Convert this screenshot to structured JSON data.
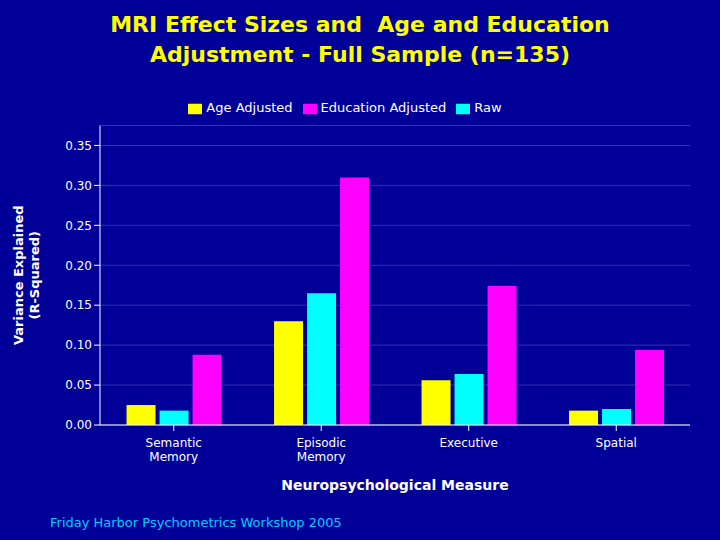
{
  "chart_data": {
    "type": "bar",
    "title": "MRI Effect Sizes and  Age and Education\nAdjustment - Full Sample (n=135)",
    "categories": [
      "Semantic\nMemory",
      "Episodic\nMemory",
      "Executive",
      "Spatial"
    ],
    "series": [
      {
        "name": "Age Adjusted",
        "color": "#FFFF00",
        "values": [
          0.025,
          0.13,
          0.056,
          0.018
        ]
      },
      {
        "name": "Raw",
        "color": "#00FFFF",
        "values": [
          0.018,
          0.165,
          0.064,
          0.02
        ]
      },
      {
        "name": "Education Adjusted",
        "color": "#FF00FF",
        "values": [
          0.088,
          0.31,
          0.174,
          0.094
        ]
      }
    ],
    "x_label": "Neuropsychological Measure",
    "y_label": "Variance Explained\n(R-Squared)",
    "ylim": [
      0,
      0.375
    ],
    "yticks": [
      {
        "value": 0.0,
        "label": "0.00"
      },
      0.05,
      {
        "value": 0.1,
        "label": "0.10"
      },
      0.15,
      {
        "value": 0.2,
        "label": "0.20"
      },
      0.25,
      {
        "value": 0.3,
        "label": "0.30"
      },
      0.35
    ],
    "grid": true,
    "legend": "top",
    "annotations": [
      "Friday Harbor Psychometrics Workshop 2005"
    ]
  }
}
